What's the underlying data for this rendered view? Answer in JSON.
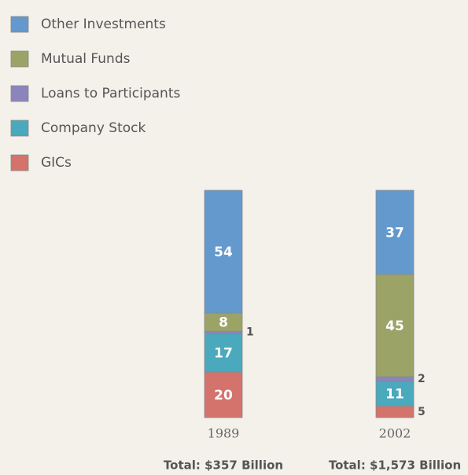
{
  "chart_data": {
    "type": "stacked_bar",
    "categories": [
      "1989",
      "2002"
    ],
    "category_notes": [
      "Total: $357 Billion",
      "Total: $1,573 Billion"
    ],
    "ylim": [
      0,
      100
    ],
    "series": [
      {
        "name": "GICs",
        "color": "#d4736b",
        "values": [
          20,
          5
        ]
      },
      {
        "name": "Company Stock",
        "color": "#4aa9bd",
        "values": [
          17,
          11
        ]
      },
      {
        "name": "Loans to Participants",
        "color": "#8b85bd",
        "values": [
          1,
          2
        ]
      },
      {
        "name": "Mutual Funds",
        "color": "#9ba367",
        "values": [
          8,
          45
        ]
      },
      {
        "name": "Other Investments",
        "color": "#6399cd",
        "values": [
          54,
          37
        ]
      }
    ]
  }
}
